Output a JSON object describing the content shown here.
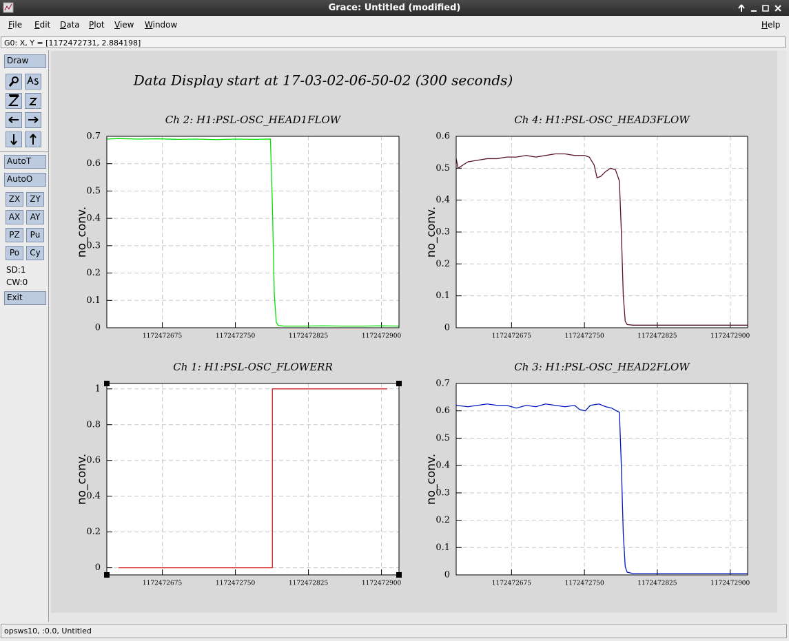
{
  "window": {
    "title": "Grace: Untitled (modified)"
  },
  "menu": [
    "File",
    "Edit",
    "Data",
    "Plot",
    "View",
    "Window"
  ],
  "help": "Help",
  "locator": "G0: X, Y = [1172472731, 2.884198]",
  "toolbar": {
    "draw": "Draw",
    "autot": "AutoT",
    "autoo": "AutoO",
    "buttons": [
      "ZX",
      "ZY",
      "AX",
      "AY",
      "PZ",
      "Pu",
      "Po",
      "Cy"
    ],
    "sd": "SD:1",
    "cw": "CW:0",
    "exit": "Exit"
  },
  "status": "opsws10, :0.0, Untitled",
  "canvas_title": "Data Display start at 17-03-02-06-50-02 (300 seconds)",
  "chart_data": [
    {
      "type": "line",
      "title": "Ch 2: H1:PSL-OSC_HEAD1FLOW",
      "ylabel": "no_conv.",
      "color": "#00e000",
      "grid": true,
      "x": [
        1172472618,
        1172472630,
        1172472650,
        1172472670,
        1172472690,
        1172472710,
        1172472730,
        1172472750,
        1172472770,
        1172472786,
        1172472788,
        1172472790,
        1172472792,
        1172472794,
        1172472800,
        1172472820,
        1172472840,
        1172472860,
        1172472880,
        1172472900,
        1172472918
      ],
      "values": [
        0.69,
        0.692,
        0.69,
        0.691,
        0.689,
        0.69,
        0.688,
        0.69,
        0.689,
        0.69,
        0.45,
        0.12,
        0.02,
        0.008,
        0.006,
        0.006,
        0.007,
        0.006,
        0.006,
        0.007,
        0.006
      ],
      "xlim": [
        1172472618,
        1172472918
      ],
      "xticks": [
        1172472675,
        1172472750,
        1172472825,
        1172472900
      ],
      "ylim": [
        0,
        0.7
      ],
      "yticks": [
        0,
        0.1,
        0.2,
        0.3,
        0.4,
        0.5,
        0.6,
        0.7
      ]
    },
    {
      "type": "line",
      "title": "Ch 4: H1:PSL-OSC_HEAD3FLOW",
      "ylabel": "no_conv.",
      "color": "#5a1030",
      "grid": true,
      "x": [
        1172472618,
        1172472620,
        1172472630,
        1172472640,
        1172472650,
        1172472660,
        1172472670,
        1172472680,
        1172472690,
        1172472700,
        1172472710,
        1172472720,
        1172472730,
        1172472740,
        1172472750,
        1172472755,
        1172472760,
        1172472763,
        1172472767,
        1172472772,
        1172472777,
        1172472782,
        1172472786,
        1172472788,
        1172472790,
        1172472792,
        1172472794,
        1172472800,
        1172472820,
        1172472840,
        1172472860,
        1172472880,
        1172472900,
        1172472918
      ],
      "values": [
        0.53,
        0.5,
        0.52,
        0.525,
        0.53,
        0.53,
        0.535,
        0.535,
        0.54,
        0.535,
        0.54,
        0.545,
        0.545,
        0.54,
        0.54,
        0.535,
        0.51,
        0.47,
        0.475,
        0.49,
        0.5,
        0.495,
        0.46,
        0.3,
        0.1,
        0.02,
        0.01,
        0.008,
        0.008,
        0.008,
        0.008,
        0.008,
        0.008,
        0.008
      ],
      "xlim": [
        1172472618,
        1172472918
      ],
      "xticks": [
        1172472675,
        1172472750,
        1172472825,
        1172472900
      ],
      "ylim": [
        0,
        0.6
      ],
      "yticks": [
        0,
        0.1,
        0.2,
        0.3,
        0.4,
        0.5,
        0.6
      ]
    },
    {
      "type": "line",
      "title": "Ch 1: H1:PSL-OSC_FLOWERR",
      "ylabel": "no_conv.",
      "color": "#d02020",
      "grid": true,
      "x": [
        1172472630,
        1172472788,
        1172472788,
        1172472906
      ],
      "values": [
        0,
        0,
        1,
        1
      ],
      "xlim": [
        1172472618,
        1172472918
      ],
      "xticks": [
        1172472675,
        1172472750,
        1172472825,
        1172472900
      ],
      "ylim": [
        -0.04,
        1.03
      ],
      "yticks": [
        0,
        0.2,
        0.4,
        0.6,
        0.8,
        1
      ]
    },
    {
      "type": "line",
      "title": "Ch 3: H1:PSL-OSC_HEAD2FLOW",
      "ylabel": "no_conv.",
      "color": "#0018c0",
      "grid": true,
      "x": [
        1172472618,
        1172472630,
        1172472640,
        1172472650,
        1172472660,
        1172472670,
        1172472680,
        1172472690,
        1172472700,
        1172472710,
        1172472720,
        1172472730,
        1172472740,
        1172472745,
        1172472751,
        1172472756,
        1172472765,
        1172472772,
        1172472778,
        1172472783,
        1172472786,
        1172472788,
        1172472790,
        1172472792,
        1172472794,
        1172472800,
        1172472820,
        1172472840,
        1172472860,
        1172472880,
        1172472900,
        1172472918
      ],
      "values": [
        0.62,
        0.615,
        0.62,
        0.625,
        0.62,
        0.62,
        0.61,
        0.62,
        0.615,
        0.625,
        0.62,
        0.615,
        0.62,
        0.605,
        0.6,
        0.62,
        0.625,
        0.615,
        0.61,
        0.6,
        0.595,
        0.4,
        0.15,
        0.03,
        0.01,
        0.005,
        0.005,
        0.005,
        0.005,
        0.005,
        0.005,
        0.005
      ],
      "xlim": [
        1172472618,
        1172472918
      ],
      "xticks": [
        1172472675,
        1172472750,
        1172472825,
        1172472900
      ],
      "ylim": [
        0,
        0.7
      ],
      "yticks": [
        0,
        0.1,
        0.2,
        0.3,
        0.4,
        0.5,
        0.6,
        0.7
      ]
    }
  ]
}
